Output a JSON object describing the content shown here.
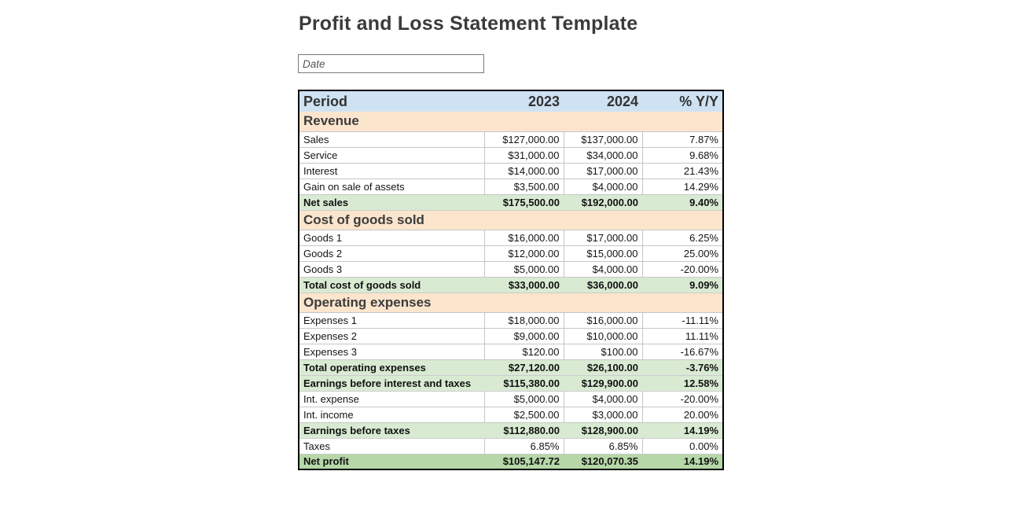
{
  "page": {
    "title": "Profit and Loss Statement Template"
  },
  "date_input": {
    "placeholder": "Date",
    "value": ""
  },
  "table": {
    "columns": [
      "Period",
      "2023",
      "2024",
      "% Y/Y"
    ],
    "rows": [
      {
        "type": "section",
        "label": "Revenue"
      },
      {
        "type": "data",
        "label": "Sales",
        "y2023": "$127,000.00",
        "y2024": "$137,000.00",
        "yoy": "7.87%"
      },
      {
        "type": "data",
        "label": "Service",
        "y2023": "$31,000.00",
        "y2024": "$34,000.00",
        "yoy": "9.68%"
      },
      {
        "type": "data",
        "label": "Interest",
        "y2023": "$14,000.00",
        "y2024": "$17,000.00",
        "yoy": "21.43%"
      },
      {
        "type": "data",
        "label": "Gain on sale of assets",
        "y2023": "$3,500.00",
        "y2024": "$4,000.00",
        "yoy": "14.29%"
      },
      {
        "type": "total",
        "label": "Net sales",
        "y2023": "$175,500.00",
        "y2024": "$192,000.00",
        "yoy": "9.40%"
      },
      {
        "type": "section",
        "label": "Cost of goods sold"
      },
      {
        "type": "data",
        "label": "Goods 1",
        "y2023": "$16,000.00",
        "y2024": "$17,000.00",
        "yoy": "6.25%"
      },
      {
        "type": "data",
        "label": "Goods 2",
        "y2023": "$12,000.00",
        "y2024": "$15,000.00",
        "yoy": "25.00%"
      },
      {
        "type": "data",
        "label": "Goods 3",
        "y2023": "$5,000.00",
        "y2024": "$4,000.00",
        "yoy": "-20.00%"
      },
      {
        "type": "total",
        "label": "Total cost of goods sold",
        "y2023": "$33,000.00",
        "y2024": "$36,000.00",
        "yoy": "9.09%"
      },
      {
        "type": "section",
        "label": "Operating expenses"
      },
      {
        "type": "data",
        "label": "Expenses 1",
        "y2023": "$18,000.00",
        "y2024": "$16,000.00",
        "yoy": "-11.11%"
      },
      {
        "type": "data",
        "label": "Expenses 2",
        "y2023": "$9,000.00",
        "y2024": "$10,000.00",
        "yoy": "11.11%"
      },
      {
        "type": "data",
        "label": "Expenses 3",
        "y2023": "$120.00",
        "y2024": "$100.00",
        "yoy": "-16.67%"
      },
      {
        "type": "total",
        "label": "Total operating expenses",
        "y2023": "$27,120.00",
        "y2024": "$26,100.00",
        "yoy": "-3.76%"
      },
      {
        "type": "total",
        "label": "Earnings before interest and taxes",
        "y2023": "$115,380.00",
        "y2024": "$129,900.00",
        "yoy": "12.58%"
      },
      {
        "type": "data",
        "label": "Int. expense",
        "y2023": "$5,000.00",
        "y2024": "$4,000.00",
        "yoy": "-20.00%"
      },
      {
        "type": "data",
        "label": "Int. income",
        "y2023": "$2,500.00",
        "y2024": "$3,000.00",
        "yoy": "20.00%"
      },
      {
        "type": "total",
        "label": "Earnings before taxes",
        "y2023": "$112,880.00",
        "y2024": "$128,900.00",
        "yoy": "14.19%"
      },
      {
        "type": "data",
        "label": "Taxes",
        "y2023": "6.85%",
        "y2024": "6.85%",
        "yoy": "0.00%"
      },
      {
        "type": "grand_total",
        "label": "Net profit",
        "y2023": "$105,147.72",
        "y2024": "$120,070.35",
        "yoy": "14.19%"
      }
    ]
  },
  "colors": {
    "header_bg": "#cfe2f3",
    "section_bg": "#fce5cd",
    "total_row_bg": "#d9ead3",
    "net_profit_row_bg": "#b6d7a8",
    "table_border": "#000000",
    "grid_line": "#c6c6c6",
    "title_text": "#3b3b3b"
  }
}
